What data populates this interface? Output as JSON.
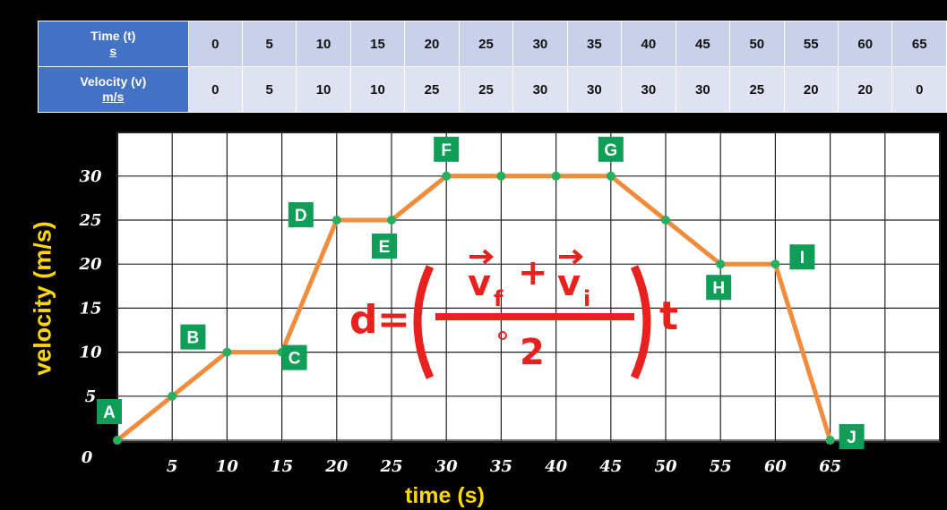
{
  "table": {
    "row1_header": "Time (t)",
    "row1_unit": "s",
    "row2_header": "Velocity (v)",
    "row2_unit": "m/s",
    "time": [
      "0",
      "5",
      "10",
      "15",
      "20",
      "25",
      "30",
      "35",
      "40",
      "45",
      "50",
      "55",
      "60",
      "65"
    ],
    "velocity": [
      "0",
      "5",
      "10",
      "10",
      "25",
      "25",
      "30",
      "30",
      "30",
      "30",
      "25",
      "20",
      "20",
      "0"
    ]
  },
  "chart_data": {
    "type": "line",
    "xlabel": "time (s)",
    "ylabel": "velocity (m/s)",
    "x": [
      0,
      5,
      10,
      15,
      20,
      25,
      30,
      35,
      40,
      45,
      50,
      55,
      60,
      65
    ],
    "series": [
      {
        "values": [
          0,
          5,
          10,
          10,
          25,
          25,
          30,
          30,
          30,
          30,
          25,
          20,
          20,
          0
        ]
      }
    ],
    "xlim": [
      0,
      70
    ],
    "ylim": [
      0,
      30
    ],
    "xticks": [
      "5",
      "10",
      "15",
      "20",
      "25",
      "30",
      "35",
      "40",
      "45",
      "50",
      "55",
      "60",
      "65"
    ],
    "yticks": [
      "0",
      "5",
      "10",
      "15",
      "20",
      "25",
      "30"
    ],
    "point_labels": [
      {
        "label": "A",
        "x": 0,
        "y": 0
      },
      {
        "label": "B",
        "x": 10,
        "y": 10
      },
      {
        "label": "C",
        "x": 15,
        "y": 10
      },
      {
        "label": "D",
        "x": 20,
        "y": 25
      },
      {
        "label": "E",
        "x": 25,
        "y": 25
      },
      {
        "label": "F",
        "x": 30,
        "y": 30
      },
      {
        "label": "G",
        "x": 45,
        "y": 30
      },
      {
        "label": "H",
        "x": 55,
        "y": 20
      },
      {
        "label": "I",
        "x": 60,
        "y": 20
      },
      {
        "label": "J",
        "x": 65,
        "y": 0
      }
    ],
    "grid": true,
    "colors": {
      "line": "#f08c3c",
      "point": "#27ae60",
      "label_bg": "#0f9d58",
      "formula": "#e8201e",
      "axis_text": "#ffd800"
    }
  },
  "formula": {
    "lhs": "d",
    "eq": "=",
    "vf": "v",
    "vf_sub": "f",
    "plus": "+",
    "vi": "v",
    "vi_sub": "i",
    "denominator": "2",
    "t": "t"
  }
}
